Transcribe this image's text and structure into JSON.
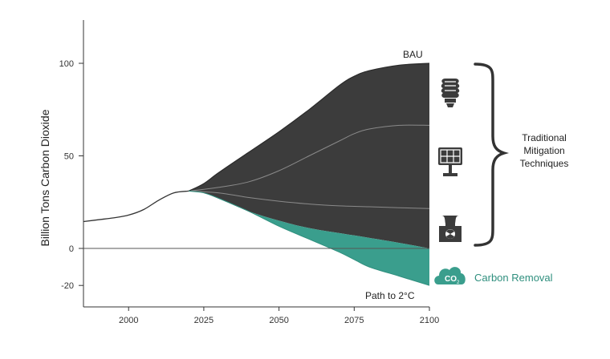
{
  "chart_data": {
    "type": "area",
    "title": "",
    "xlabel": "",
    "ylabel": "Billion Tons Carbon Dioxide",
    "xlim": [
      1985,
      2100
    ],
    "ylim": [
      -30,
      125
    ],
    "x_ticks": [
      2000,
      2025,
      2050,
      2075,
      2100
    ],
    "y_ticks": [
      100,
      50,
      0,
      -20
    ],
    "grid": false,
    "legend": "none",
    "historical": {
      "x": [
        1985,
        1990,
        1995,
        2000,
        2005,
        2010,
        2015,
        2020
      ],
      "y": [
        14.5,
        15.5,
        16.5,
        18,
        21,
        26,
        30,
        31
      ]
    },
    "series": [
      {
        "name": "BAU",
        "x": [
          2020,
          2025,
          2030,
          2040,
          2050,
          2060,
          2070,
          2075,
          2080,
          2090,
          2100
        ],
        "y": [
          31,
          35,
          41,
          52,
          63,
          75,
          88,
          93,
          96,
          99,
          100
        ]
      },
      {
        "x": [
          2020,
          2030,
          2040,
          2050,
          2060,
          2070,
          2075,
          2080,
          2090,
          2100
        ],
        "y": [
          31,
          33,
          36,
          42,
          50,
          58,
          62,
          64.5,
          66.5,
          66.5
        ]
      },
      {
        "x": [
          2020,
          2030,
          2040,
          2050,
          2060,
          2070,
          2080,
          2090,
          2100
        ],
        "y": [
          31,
          30,
          27.5,
          25.5,
          24,
          23,
          22.5,
          22,
          21.5
        ]
      },
      {
        "x": [
          2020,
          2025,
          2030,
          2040,
          2050,
          2060,
          2075,
          2090,
          2100
        ],
        "y": [
          31,
          30,
          27,
          20,
          15,
          11,
          7,
          3,
          0
        ]
      },
      {
        "name": "Path to 2°C",
        "x": [
          2020,
          2025,
          2030,
          2040,
          2050,
          2060,
          2070,
          2075,
          2080,
          2090,
          2100
        ],
        "y": [
          31,
          30,
          27,
          20,
          12,
          5,
          -2,
          -6,
          -10,
          -15,
          -20
        ]
      }
    ],
    "annotations": {
      "bau": "BAU",
      "path": "Path to 2°C",
      "traditional": [
        "Traditional",
        "Mitigation",
        "Techniques"
      ],
      "removal": "Carbon Removal",
      "co2_icon_text": "CO",
      "co2_icon_sub": "2"
    },
    "icons": [
      "lightbulb-icon",
      "solar-panel-icon",
      "nuclear-plant-icon",
      "co2-cloud-icon"
    ],
    "colors": {
      "mitigation_fill": "#3c3c3c",
      "removal_fill": "#3a9e8d",
      "line": "#333333",
      "divider": "#8a8a8a",
      "removal_text": "#2f8f7e"
    }
  }
}
